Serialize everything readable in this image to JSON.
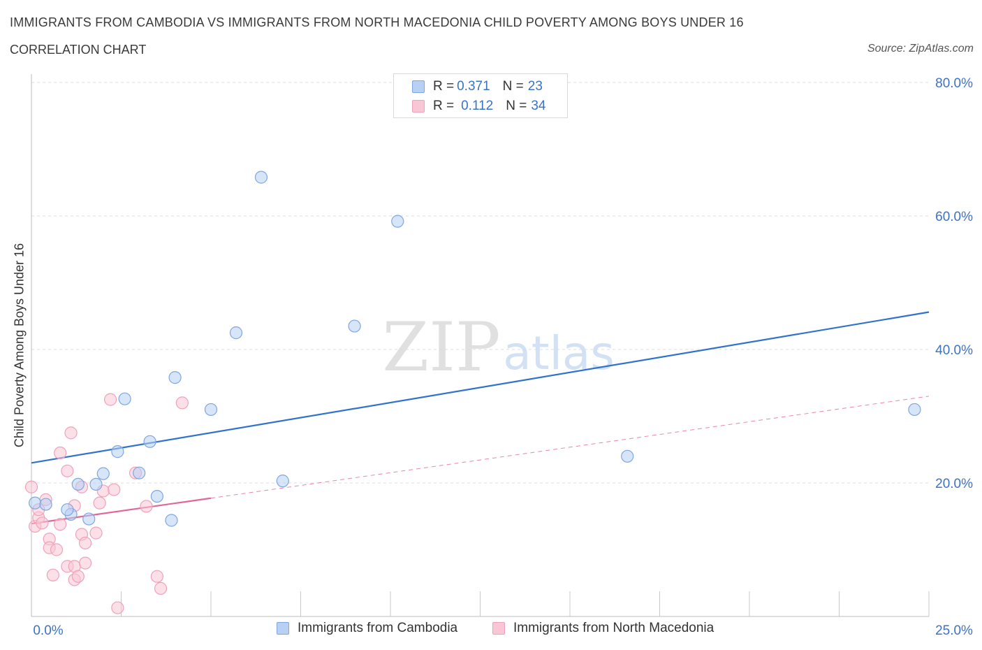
{
  "header": {
    "title": "IMMIGRANTS FROM CAMBODIA VS IMMIGRANTS FROM NORTH MACEDONIA CHILD POVERTY AMONG BOYS UNDER 16",
    "subtitle": "CORRELATION CHART",
    "source": "Source: ZipAtlas.com"
  },
  "watermark": {
    "zip": "ZIP",
    "atlas": "atlas"
  },
  "legend_top": {
    "rows": [
      {
        "r_label": "R = ",
        "r_value": "0.371",
        "n_label": "N = ",
        "n_value": "23"
      },
      {
        "r_label": "R = ",
        "r_value": "0.112",
        "n_label": "N = ",
        "n_value": "34"
      }
    ]
  },
  "legend_bottom": {
    "items": [
      {
        "label": "Immigrants from Cambodia"
      },
      {
        "label": "Immigrants from North Macedonia"
      }
    ]
  },
  "colors": {
    "blue_fill": "#b7d0f4",
    "blue_stroke": "#7fa6e0",
    "blue_line": "#2f72cf",
    "pink_fill": "#f9c6d6",
    "pink_stroke": "#efa1bb",
    "pink_line": "#e0679a",
    "axis_text": "#3b72c9",
    "grid": "#dcdcdc"
  },
  "chart_data": {
    "type": "scatter",
    "title": "IMMIGRANTS FROM CAMBODIA VS IMMIGRANTS FROM NORTH MACEDONIA CHILD POVERTY AMONG BOYS UNDER 16",
    "xlabel": "",
    "ylabel": "Child Poverty Among Boys Under 16",
    "xlim": [
      0,
      25
    ],
    "ylim": [
      0,
      80
    ],
    "x_tick_labels": [
      {
        "value": 0,
        "label": "0.0%"
      },
      {
        "value": 25,
        "label": "25.0%"
      }
    ],
    "y_tick_labels": [
      {
        "value": 20,
        "label": "20.0%"
      },
      {
        "value": 40,
        "label": "40.0%"
      },
      {
        "value": 60,
        "label": "60.0%"
      },
      {
        "value": 80,
        "label": "80.0%"
      }
    ],
    "x_minor_ticks": [
      2.5,
      5,
      7.5,
      10,
      12.5,
      15,
      17.5,
      20,
      22.5,
      25
    ],
    "grid": true,
    "series": [
      {
        "name": "Immigrants from Cambodia",
        "color": "blue",
        "R": 0.371,
        "N": 23,
        "points": [
          [
            0.1,
            17.0
          ],
          [
            0.4,
            16.8
          ],
          [
            1.1,
            15.3
          ],
          [
            1.0,
            16.0
          ],
          [
            1.3,
            19.8
          ],
          [
            1.6,
            14.6
          ],
          [
            1.8,
            19.8
          ],
          [
            2.0,
            21.4
          ],
          [
            2.4,
            24.7
          ],
          [
            2.6,
            32.6
          ],
          [
            3.0,
            21.5
          ],
          [
            3.3,
            26.2
          ],
          [
            3.5,
            18.0
          ],
          [
            3.9,
            14.4
          ],
          [
            4.0,
            35.8
          ],
          [
            5.0,
            31.0
          ],
          [
            5.7,
            42.5
          ],
          [
            6.4,
            65.8
          ],
          [
            7.0,
            20.3
          ],
          [
            9.0,
            43.5
          ],
          [
            10.2,
            59.2
          ],
          [
            16.6,
            24.0
          ],
          [
            24.6,
            31.0
          ]
        ],
        "trend": {
          "x": [
            0,
            25
          ],
          "y": [
            23.0,
            45.6
          ],
          "style": "solid"
        }
      },
      {
        "name": "Immigrants from North Macedonia",
        "color": "pink",
        "R": 0.112,
        "N": 34,
        "points": [
          [
            0.0,
            19.4
          ],
          [
            0.1,
            13.5
          ],
          [
            0.2,
            14.8
          ],
          [
            0.3,
            14.0
          ],
          [
            0.4,
            17.5
          ],
          [
            0.5,
            11.6
          ],
          [
            0.5,
            10.3
          ],
          [
            0.6,
            6.2
          ],
          [
            0.7,
            10.0
          ],
          [
            0.8,
            13.8
          ],
          [
            0.8,
            24.5
          ],
          [
            1.0,
            7.5
          ],
          [
            1.0,
            21.8
          ],
          [
            1.1,
            27.5
          ],
          [
            1.2,
            5.5
          ],
          [
            1.2,
            7.5
          ],
          [
            1.2,
            16.6
          ],
          [
            1.3,
            6.0
          ],
          [
            1.4,
            12.3
          ],
          [
            1.4,
            19.4
          ],
          [
            1.5,
            8.0
          ],
          [
            1.5,
            11.0
          ],
          [
            1.8,
            12.5
          ],
          [
            1.9,
            17.0
          ],
          [
            2.0,
            18.8
          ],
          [
            2.2,
            32.5
          ],
          [
            2.3,
            19.0
          ],
          [
            2.4,
            1.3
          ],
          [
            2.9,
            21.5
          ],
          [
            3.2,
            16.5
          ],
          [
            3.5,
            6.0
          ],
          [
            3.6,
            4.2
          ],
          [
            4.2,
            32.0
          ],
          [
            0.2,
            16.0
          ]
        ],
        "trend": {
          "x": [
            0,
            25
          ],
          "y": [
            13.9,
            33.0
          ],
          "style": "solid-then-dashed",
          "solid_until_x": 5.0
        }
      }
    ]
  }
}
